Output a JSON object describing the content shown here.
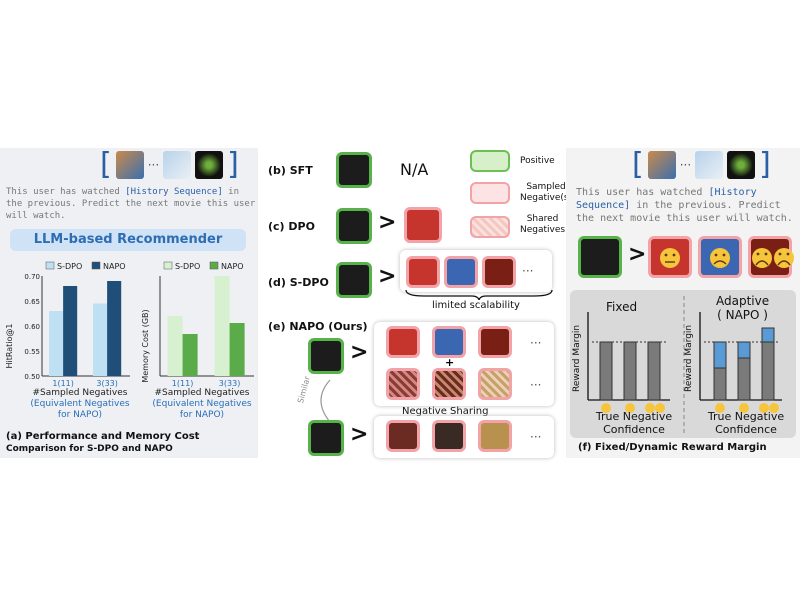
{
  "panel_a": {
    "prompt_pre": "This user has watched ",
    "prompt_highlight": "[History Sequence]",
    "prompt_post": " in the previous. Predict the next movie this user will watch.",
    "llm_label": "LLM-based Recommender",
    "caption_line1": "(a) Performance and Memory Cost",
    "caption_line2": "Comparison for S-DPO and NAPO"
  },
  "chart_data": [
    {
      "type": "bar",
      "title": "",
      "categories": [
        "1(11)",
        "3(33)"
      ],
      "series": [
        {
          "name": "S-DPO",
          "values": [
            0.63,
            0.645
          ]
        },
        {
          "name": "NAPO",
          "values": [
            0.68,
            0.69
          ]
        }
      ],
      "ylabel": "HitRatio@1",
      "xlabel_line1": "#Sampled Negatives",
      "xlabel_line2": "(Equivalent Negatives",
      "xlabel_line3": "for NAPO)",
      "ylim": [
        0.5,
        0.7
      ],
      "yticks": [
        "0.70",
        "0.65",
        "0.60",
        "0.55",
        "0.50"
      ],
      "colors": {
        "S-DPO": "#bfe0f3",
        "NAPO": "#1f4e79"
      }
    },
    {
      "type": "bar",
      "title": "",
      "categories": [
        "1(11)",
        "3(33)"
      ],
      "series": [
        {
          "name": "S-DPO",
          "values": [
            60,
            100
          ]
        },
        {
          "name": "NAPO",
          "values": [
            42,
            53
          ]
        }
      ],
      "ylabel": "Memory Cost (GB)",
      "xlabel_line1": "#Sampled Negatives",
      "xlabel_line2": "(Equivalent Negatives",
      "xlabel_line3": "for NAPO)",
      "ylim": [
        0,
        100
      ],
      "colors": {
        "S-DPO": "#d7f0d0",
        "NAPO": "#5cab4a"
      }
    }
  ],
  "middle": {
    "sft_label": "(b) SFT",
    "na_text": "N/A",
    "dpo_label": "(c) DPO",
    "sdpo_label": "(d) S-DPO",
    "napo_label": "(e) NAPO (Ours)",
    "limited_text": "limited scalability",
    "sharing_text": "Negative Sharing",
    "similar_text": "Similar",
    "ellipsis": "···",
    "plus": "+",
    "gt": ">",
    "legend": {
      "positive": "Positive",
      "sampled_line1": "Sampled",
      "sampled_line2": "Negative(s)",
      "shared_line1": "Shared",
      "shared_line2": "Negatives"
    }
  },
  "panel_f": {
    "prompt_pre": "This user has watched ",
    "prompt_highlight": "[History Sequence]",
    "prompt_post": " in the previous. Predict the next movie this user will watch.",
    "fixed_label": "Fixed",
    "adaptive_label": "Adaptive",
    "adaptive_sub": "( NAPO )",
    "yaxis": "Reward Margin",
    "xaxis_line1": "True Negative",
    "xaxis_line2": "Confidence",
    "caption": "(f) Fixed/Dynamic Reward Margin",
    "gt": ">"
  }
}
